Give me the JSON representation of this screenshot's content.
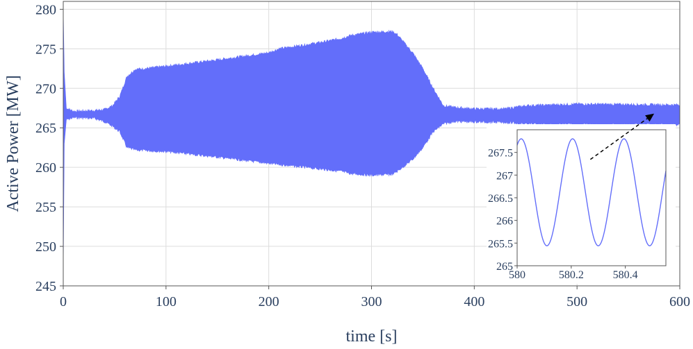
{
  "chart_data": [
    {
      "type": "area",
      "xlabel": "time [s]",
      "ylabel": "Active Power [MW]",
      "xlim": [
        0,
        600
      ],
      "ylim": [
        245,
        281
      ],
      "x_ticks": [
        0,
        100,
        200,
        300,
        400,
        500,
        600
      ],
      "x_tick_labels": [
        "0",
        "100",
        "200",
        "300",
        "400",
        "500",
        "600"
      ],
      "y_ticks": [
        245,
        250,
        255,
        260,
        265,
        270,
        275,
        280
      ],
      "y_tick_labels": [
        "245",
        "250",
        "255",
        "260",
        "265",
        "270",
        "275",
        "280"
      ],
      "grid": true,
      "legend": "none",
      "series": [
        {
          "color": "#636efa",
          "envelope_upper": [
            [
              0,
              280
            ],
            [
              1,
              272
            ],
            [
              3,
              267.5
            ],
            [
              10,
              267.1
            ],
            [
              30,
              267.2
            ],
            [
              40,
              267.3
            ],
            [
              48,
              267.8
            ],
            [
              55,
              269
            ],
            [
              62,
              271.5
            ],
            [
              70,
              272.4
            ],
            [
              80,
              272.5
            ],
            [
              100,
              272.8
            ],
            [
              150,
              273.6
            ],
            [
              200,
              274.5
            ],
            [
              210,
              275
            ],
            [
              250,
              275.8
            ],
            [
              270,
              276.3
            ],
            [
              280,
              276.7
            ],
            [
              300,
              277.1
            ],
            [
              320,
              277.2
            ],
            [
              325,
              276.8
            ],
            [
              340,
              274.5
            ],
            [
              350,
              272.5
            ],
            [
              360,
              270
            ],
            [
              370,
              267.8
            ],
            [
              380,
              267.6
            ],
            [
              400,
              267.4
            ],
            [
              430,
              267.4
            ],
            [
              440,
              267.6
            ],
            [
              450,
              267.8
            ],
            [
              500,
              268
            ],
            [
              600,
              267.9
            ]
          ],
          "envelope_lower": [
            [
              0,
              246.5
            ],
            [
              1,
              263
            ],
            [
              3,
              266
            ],
            [
              10,
              266.3
            ],
            [
              30,
              266.2
            ],
            [
              40,
              265.8
            ],
            [
              48,
              265.2
            ],
            [
              55,
              264.5
            ],
            [
              62,
              262.5
            ],
            [
              70,
              262.2
            ],
            [
              100,
              262
            ],
            [
              150,
              261.3
            ],
            [
              200,
              260.5
            ],
            [
              250,
              259.8
            ],
            [
              270,
              259.5
            ],
            [
              280,
              259.2
            ],
            [
              300,
              259
            ],
            [
              320,
              259.1
            ],
            [
              325,
              259.5
            ],
            [
              340,
              261
            ],
            [
              350,
              262.5
            ],
            [
              360,
              264.5
            ],
            [
              370,
              265.5
            ],
            [
              380,
              265.8
            ],
            [
              430,
              265.7
            ],
            [
              440,
              265.6
            ],
            [
              450,
              265.5
            ],
            [
              500,
              265.4
            ],
            [
              600,
              265.4
            ]
          ]
        }
      ],
      "annotation": {
        "type": "arrow",
        "from": [
          513,
          261
        ],
        "to": [
          575,
          266.8
        ],
        "style": "dashed"
      }
    },
    {
      "type": "line",
      "xlim": [
        580,
        580.55
      ],
      "ylim": [
        265,
        268
      ],
      "x_ticks": [
        580,
        580.2,
        580.4
      ],
      "x_tick_labels": [
        "580",
        "580.2",
        "580.4"
      ],
      "y_ticks": [
        265,
        265.5,
        266,
        266.5,
        267,
        267.5
      ],
      "y_tick_labels": [
        "265",
        "265.5",
        "266",
        "266.5",
        "267",
        "267.5"
      ],
      "grid": false,
      "series": [
        {
          "color": "#636efa",
          "oscillation": {
            "mean": 266.62,
            "amplitude": 1.18,
            "period": 0.19,
            "peak_at": 580.015
          }
        }
      ]
    }
  ]
}
